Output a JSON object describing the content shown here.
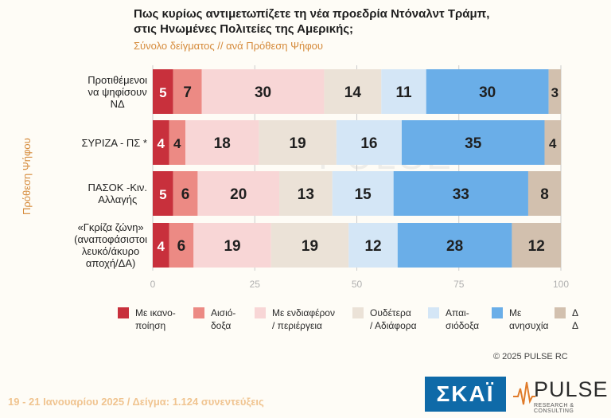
{
  "title_line1": "Πως κυρίως αντιμετωπίζετε τη νέα προεδρία Ντόναλντ Τράμπ,",
  "title_line2": "στις Ηνωμένες Πολιτείες της Αμερικής;",
  "subtitle": "Σύνολο δείγματος // ανά Πρόθεση Ψήφου",
  "vertical_label": "Πρόθεση Ψήφου",
  "watermark": "PULSE",
  "copyright": "©  2025  PULSE RC",
  "footer": "19 - 21 Ιανουαρίου 2025  /  Δείγμα:  1.124 συνεντεύξεις",
  "logos": {
    "skai": "ΣΚΑΪ",
    "pulse": "PULSE",
    "pulse_sub": "RESEARCH & CONSULTING"
  },
  "legend": [
    {
      "label": "Με ικανο-\nποίηση",
      "color": "#c8303c"
    },
    {
      "label": "Αισιό-\nδοξα",
      "color": "#ec8a84"
    },
    {
      "label": "Με ενδιαφέρον\n/ περιέργεια",
      "color": "#f8d6d6"
    },
    {
      "label": "Ουδέτερα\n/ Αδιάφορα",
      "color": "#ebe2d7"
    },
    {
      "label": "Απαι-\nσιόδοξα",
      "color": "#d4e6f6"
    },
    {
      "label": "Με\nανησυχία",
      "color": "#6aaee8"
    },
    {
      "label": "Δ\nΔ",
      "color": "#d2c0ae"
    }
  ],
  "chart_data": {
    "type": "bar",
    "orientation": "horizontal",
    "stacked": true,
    "categories": [
      [
        "Προτιθέμενοι",
        "να ψηφίσουν",
        "ΝΔ"
      ],
      [
        "ΣΥΡΙΖΑ - ΠΣ *"
      ],
      [
        "ΠΑΣΟΚ -Κιν.",
        "Αλλαγής"
      ],
      [
        "«Γκρίζα ζώνη»",
        "(αναποφάσιστοι",
        "λευκό/άκυρο",
        "αποχή/ΔΑ)"
      ]
    ],
    "series": [
      {
        "name": "Με ικανοποίηση",
        "color": "#c8303c",
        "values": [
          5,
          4,
          5,
          4
        ]
      },
      {
        "name": "Αισιόδοξα",
        "color": "#ec8a84",
        "values": [
          7,
          4,
          6,
          6
        ]
      },
      {
        "name": "Με ενδιαφέρον / περιέργεια",
        "color": "#f8d6d6",
        "values": [
          30,
          18,
          20,
          19
        ]
      },
      {
        "name": "Ουδέτερα / Αδιάφορα",
        "color": "#ebe2d7",
        "values": [
          14,
          19,
          13,
          19
        ]
      },
      {
        "name": "Απαισιόδοξα",
        "color": "#d4e6f6",
        "values": [
          11,
          16,
          15,
          12
        ]
      },
      {
        "name": "Με ανησυχία",
        "color": "#6aaee8",
        "values": [
          30,
          35,
          33,
          28
        ]
      },
      {
        "name": "ΔΔ",
        "color": "#d2c0ae",
        "values": [
          3,
          4,
          8,
          12
        ]
      }
    ],
    "xlim": [
      0,
      100
    ],
    "xticks": [
      0,
      25,
      50,
      75,
      100
    ],
    "grid": true
  }
}
